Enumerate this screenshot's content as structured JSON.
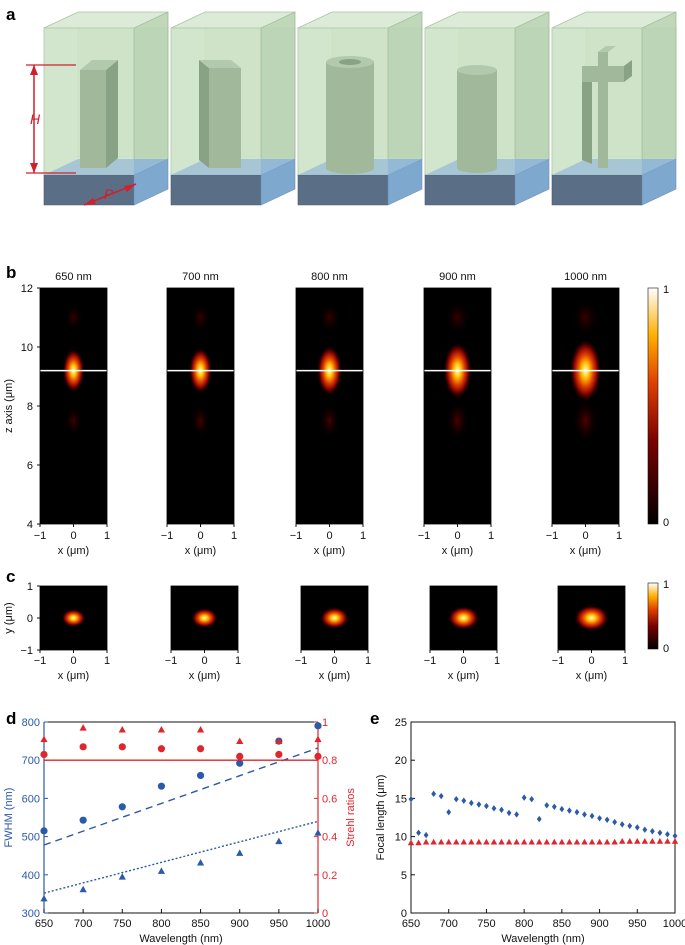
{
  "panel_labels": {
    "a": "a",
    "b": "b",
    "c": "c",
    "d": "d",
    "e": "e"
  },
  "panel_a": {
    "H_label": "H",
    "P_label": "P",
    "pillar_shapes": [
      "rectangular-pillar",
      "square-pillar",
      "hollow-cylinder",
      "cylinder",
      "cross-pillar"
    ]
  },
  "panel_b": {
    "wavelength_titles": [
      "650 nm",
      "700 nm",
      "800 nm",
      "900 nm",
      "1000 nm"
    ],
    "ylabel": "z axis (μm)",
    "yticks": [
      "12",
      "10",
      "8",
      "6",
      "4"
    ],
    "xlabel": "x (μm)",
    "xticks": [
      "−1",
      "0",
      "1"
    ],
    "colorbar": {
      "max": "1",
      "min": "0"
    }
  },
  "panel_c": {
    "ylabel": "y (μm)",
    "yticks": [
      "1",
      "0",
      "−1"
    ],
    "xlabel": "x (μm)",
    "xticks": [
      "−1",
      "0",
      "1"
    ],
    "colorbar": {
      "max": "1",
      "min": "0"
    }
  },
  "chart_data": [
    {
      "id": "d",
      "type": "scatter",
      "xlabel": "Wavelength (nm)",
      "ylabel": "FWHM (nm)",
      "y2label": "Strehl ratios",
      "x_range": [
        650,
        1000
      ],
      "y_range": [
        300,
        800
      ],
      "y2_range": [
        0,
        1
      ],
      "xticks": [
        650,
        700,
        750,
        800,
        850,
        900,
        950,
        1000
      ],
      "yticks": [
        300,
        400,
        500,
        600,
        700,
        800
      ],
      "y2ticks": [
        0,
        0.2,
        0.4,
        0.6,
        0.8,
        1
      ],
      "colors": {
        "left": "#2a5aa8",
        "right": "#e0262d"
      },
      "series": [
        {
          "axis": "left",
          "marker": "circle",
          "color": "#2a5aa8",
          "x": [
            650,
            700,
            750,
            800,
            850,
            900,
            950,
            1000
          ],
          "y": [
            515,
            543,
            578,
            632,
            660,
            692,
            750,
            790
          ]
        },
        {
          "axis": "left",
          "marker": "triangle",
          "color": "#2a5aa8",
          "x": [
            650,
            700,
            750,
            800,
            850,
            900,
            950,
            1000
          ],
          "y": [
            338,
            362,
            395,
            410,
            432,
            457,
            488,
            510
          ]
        },
        {
          "axis": "left",
          "line": "dashed",
          "color": "#2a5aa8",
          "x": [
            650,
            1000
          ],
          "y": [
            478,
            732
          ]
        },
        {
          "axis": "left",
          "line": "dotted",
          "color": "#2a5aa8",
          "x": [
            650,
            1000
          ],
          "y": [
            352,
            540
          ]
        },
        {
          "axis": "right",
          "marker": "triangle",
          "color": "#e0262d",
          "x": [
            650,
            700,
            750,
            800,
            850,
            900,
            950,
            1000
          ],
          "y": [
            0.91,
            0.97,
            0.96,
            0.96,
            0.96,
            0.9,
            0.9,
            0.91
          ]
        },
        {
          "axis": "right",
          "marker": "circle",
          "color": "#e0262d",
          "x": [
            650,
            700,
            750,
            800,
            850,
            900,
            950,
            1000
          ],
          "y": [
            0.83,
            0.87,
            0.87,
            0.86,
            0.86,
            0.82,
            0.83,
            0.82
          ]
        },
        {
          "axis": "right",
          "line": "solid",
          "color": "#e0262d",
          "x": [
            650,
            1000
          ],
          "y": [
            0.8,
            0.8
          ]
        }
      ]
    },
    {
      "id": "e",
      "type": "scatter",
      "xlabel": "Wavelength (nm)",
      "ylabel": "Focal length (μm)",
      "x_range": [
        650,
        1000
      ],
      "y_range": [
        0,
        25
      ],
      "xticks": [
        650,
        700,
        750,
        800,
        850,
        900,
        950,
        1000
      ],
      "yticks": [
        0,
        5,
        10,
        15,
        20,
        25
      ],
      "series": [
        {
          "marker": "diamond",
          "color": "#2a5aa8",
          "x": [
            650,
            660,
            670,
            680,
            690,
            700,
            710,
            720,
            730,
            740,
            750,
            760,
            770,
            780,
            790,
            800,
            810,
            820,
            830,
            840,
            850,
            860,
            870,
            880,
            890,
            900,
            910,
            920,
            930,
            940,
            950,
            960,
            970,
            980,
            990,
            1000
          ],
          "y": [
            14.9,
            10.5,
            10.2,
            15.6,
            15.3,
            13.2,
            14.9,
            14.7,
            14.4,
            14.2,
            14.0,
            13.7,
            13.5,
            13.1,
            12.9,
            15.1,
            14.9,
            12.3,
            14.1,
            13.9,
            13.6,
            13.4,
            13.2,
            12.9,
            12.7,
            12.4,
            12.2,
            11.9,
            11.6,
            11.4,
            11.2,
            10.9,
            10.7,
            10.5,
            10.3,
            10.1
          ]
        },
        {
          "marker": "triangle",
          "color": "#e0262d",
          "x": [
            650,
            660,
            670,
            680,
            690,
            700,
            710,
            720,
            730,
            740,
            750,
            760,
            770,
            780,
            790,
            800,
            810,
            820,
            830,
            840,
            850,
            860,
            870,
            880,
            890,
            900,
            910,
            920,
            930,
            940,
            950,
            960,
            970,
            980,
            990,
            1000
          ],
          "y": [
            9.2,
            9.2,
            9.3,
            9.3,
            9.3,
            9.3,
            9.3,
            9.3,
            9.3,
            9.3,
            9.3,
            9.3,
            9.3,
            9.3,
            9.3,
            9.3,
            9.3,
            9.3,
            9.3,
            9.3,
            9.3,
            9.3,
            9.3,
            9.3,
            9.3,
            9.3,
            9.3,
            9.3,
            9.4,
            9.4,
            9.4,
            9.4,
            9.4,
            9.4,
            9.4,
            9.4
          ]
        }
      ]
    }
  ]
}
